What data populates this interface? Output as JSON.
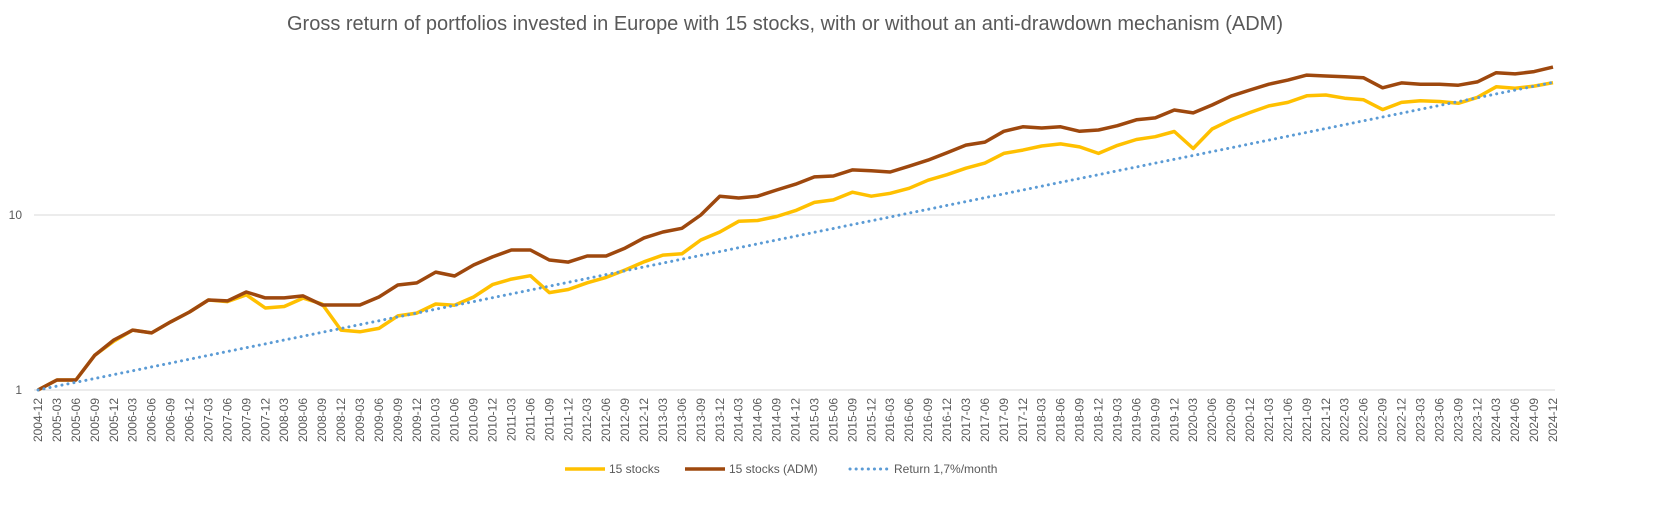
{
  "chart_data": {
    "type": "line",
    "title": "Gross return of portfolios invested in Europe with 15 stocks, with or without an anti-drawdown mechanism (ADM)",
    "log_y": true,
    "grid": true,
    "legend": "bottom",
    "ylim": [
      1,
      100
    ],
    "yticks": [
      1,
      10
    ],
    "categories": [
      "2004-12",
      "2005-03",
      "2005-06",
      "2005-09",
      "2005-12",
      "2006-03",
      "2006-06",
      "2006-09",
      "2006-12",
      "2007-03",
      "2007-06",
      "2007-09",
      "2007-12",
      "2008-03",
      "2008-06",
      "2008-09",
      "2008-12",
      "2009-03",
      "2009-06",
      "2009-09",
      "2009-12",
      "2010-03",
      "2010-06",
      "2010-09",
      "2010-12",
      "2011-03",
      "2011-06",
      "2011-09",
      "2011-12",
      "2012-03",
      "2012-06",
      "2012-09",
      "2012-12",
      "2013-03",
      "2013-06",
      "2013-09",
      "2013-12",
      "2014-03",
      "2014-06",
      "2014-09",
      "2014-12",
      "2015-03",
      "2015-06",
      "2015-09",
      "2015-12",
      "2016-03",
      "2016-06",
      "2016-09",
      "2016-12",
      "2017-03",
      "2017-06",
      "2017-09",
      "2017-12",
      "2018-03",
      "2018-06",
      "2018-09",
      "2018-12",
      "2019-03",
      "2019-06",
      "2019-09",
      "2019-12",
      "2020-03",
      "2020-06",
      "2020-09",
      "2020-12",
      "2021-03",
      "2021-06",
      "2021-09",
      "2021-12",
      "2022-03",
      "2022-06",
      "2022-09",
      "2022-12",
      "2023-03",
      "2023-06",
      "2023-09",
      "2023-12",
      "2024-03",
      "2024-06",
      "2024-09",
      "2024-12"
    ],
    "series": [
      {
        "name": "15 stocks",
        "color": "#FFC000",
        "dash": false,
        "values": [
          1.0,
          1.14,
          1.14,
          1.58,
          1.9,
          2.2,
          2.12,
          2.45,
          2.79,
          3.27,
          3.2,
          3.5,
          2.94,
          3.0,
          3.35,
          3.1,
          2.2,
          2.15,
          2.25,
          2.65,
          2.75,
          3.1,
          3.05,
          3.4,
          4.0,
          4.3,
          4.5,
          3.6,
          3.75,
          4.1,
          4.4,
          4.85,
          5.4,
          5.9,
          6.0,
          7.2,
          8.0,
          9.2,
          9.3,
          9.8,
          10.6,
          11.8,
          12.2,
          13.5,
          12.8,
          13.3,
          14.2,
          15.8,
          17.0,
          18.5,
          19.8,
          22.5,
          23.5,
          24.8,
          25.5,
          24.5,
          22.5,
          25.0,
          27.0,
          28.0,
          30.0,
          24.0,
          31.0,
          35.0,
          38.5,
          42.0,
          44.0,
          48.0,
          48.5,
          46.5,
          45.5,
          40.0,
          44.0,
          45.0,
          44.5,
          43.5,
          47.0,
          54.0,
          53.0,
          54.5,
          57.0
        ]
      },
      {
        "name": "15 stocks (ADM)",
        "color": "#9E480E",
        "dash": false,
        "values": [
          1.0,
          1.14,
          1.14,
          1.58,
          1.93,
          2.2,
          2.12,
          2.45,
          2.79,
          3.27,
          3.23,
          3.63,
          3.36,
          3.36,
          3.45,
          3.06,
          3.06,
          3.06,
          3.4,
          3.98,
          4.09,
          4.72,
          4.48,
          5.18,
          5.76,
          6.31,
          6.31,
          5.53,
          5.38,
          5.83,
          5.83,
          6.47,
          7.4,
          8.0,
          8.4,
          10.0,
          12.8,
          12.5,
          12.8,
          13.9,
          15.0,
          16.5,
          16.7,
          18.1,
          17.9,
          17.6,
          19.0,
          20.6,
          22.7,
          25.1,
          26.1,
          30.1,
          31.9,
          31.4,
          31.9,
          30.1,
          30.6,
          32.4,
          35.0,
          35.9,
          39.8,
          38.3,
          42.5,
          47.8,
          51.8,
          55.9,
          59.0,
          63.0,
          62.3,
          61.6,
          60.8,
          53.3,
          56.9,
          55.9,
          55.9,
          55.2,
          57.6,
          65.0,
          64.0,
          66.0,
          70.0
        ]
      },
      {
        "name": "Return 1,7%/month",
        "color": "#5B9BD5",
        "dash": true,
        "values": [
          1.0,
          1.052,
          1.106,
          1.164,
          1.224,
          1.288,
          1.355,
          1.425,
          1.499,
          1.577,
          1.659,
          1.745,
          1.835,
          1.93,
          2.031,
          2.136,
          2.247,
          2.363,
          2.486,
          2.615,
          2.751,
          2.894,
          3.044,
          3.202,
          3.368,
          3.543,
          3.727,
          3.92,
          4.124,
          4.338,
          4.563,
          4.8,
          5.049,
          5.311,
          5.587,
          5.876,
          6.181,
          6.502,
          6.84,
          7.195,
          7.568,
          7.961,
          8.374,
          8.808,
          9.265,
          9.746,
          10.25,
          10.78,
          11.34,
          11.93,
          12.55,
          13.2,
          13.89,
          14.61,
          15.37,
          16.16,
          17.0,
          17.88,
          18.81,
          19.79,
          20.81,
          21.89,
          23.03,
          24.22,
          25.48,
          26.8,
          28.19,
          29.66,
          31.2,
          32.81,
          34.52,
          36.31,
          38.19,
          40.17,
          42.26,
          44.45,
          46.76,
          49.18,
          51.74,
          54.42,
          57.24
        ]
      }
    ]
  }
}
